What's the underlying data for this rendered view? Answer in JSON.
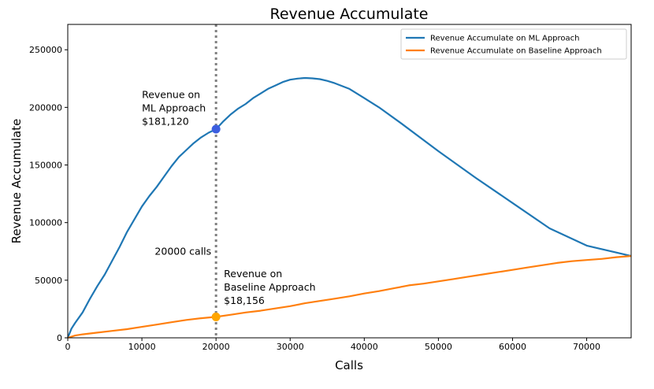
{
  "chart_data": {
    "type": "line",
    "title": "Revenue Accumulate",
    "xlabel": "Calls",
    "ylabel": "Revenue Accumulate",
    "xlim": [
      0,
      76000
    ],
    "ylim": [
      0,
      272000
    ],
    "xticks": [
      0,
      10000,
      20000,
      30000,
      40000,
      50000,
      60000,
      70000
    ],
    "yticks": [
      0,
      50000,
      100000,
      150000,
      200000,
      250000
    ],
    "grid": false,
    "legend_position": "top-right",
    "series": [
      {
        "name": "Revenue Accumulate on ML Approach",
        "color": "#1f77b4",
        "points": [
          [
            0,
            0
          ],
          [
            500,
            8000
          ],
          [
            1000,
            13000
          ],
          [
            2000,
            22000
          ],
          [
            3000,
            34000
          ],
          [
            4000,
            45000
          ],
          [
            5000,
            55000
          ],
          [
            6000,
            67000
          ],
          [
            7000,
            79000
          ],
          [
            8000,
            92000
          ],
          [
            9000,
            103000
          ],
          [
            10000,
            114000
          ],
          [
            11000,
            123000
          ],
          [
            12000,
            131000
          ],
          [
            13000,
            140000
          ],
          [
            14000,
            149000
          ],
          [
            15000,
            157000
          ],
          [
            16000,
            163000
          ],
          [
            17000,
            169000
          ],
          [
            18000,
            174000
          ],
          [
            19000,
            178000
          ],
          [
            20000,
            181120
          ],
          [
            21000,
            188000
          ],
          [
            22000,
            194000
          ],
          [
            23000,
            199000
          ],
          [
            24000,
            203000
          ],
          [
            25000,
            208000
          ],
          [
            26000,
            212000
          ],
          [
            27000,
            216000
          ],
          [
            28000,
            219000
          ],
          [
            29000,
            222000
          ],
          [
            30000,
            224000
          ],
          [
            31000,
            225000
          ],
          [
            32000,
            225500
          ],
          [
            33000,
            225200
          ],
          [
            34000,
            224500
          ],
          [
            35000,
            223000
          ],
          [
            36000,
            221000
          ],
          [
            38000,
            216000
          ],
          [
            40000,
            208000
          ],
          [
            42000,
            200000
          ],
          [
            45000,
            186000
          ],
          [
            50000,
            162000
          ],
          [
            55000,
            139000
          ],
          [
            60000,
            117000
          ],
          [
            65000,
            95000
          ],
          [
            70000,
            80000
          ],
          [
            76000,
            71000
          ]
        ]
      },
      {
        "name": "Revenue Accumulate on Baseline Approach",
        "color": "#ff7f0e",
        "points": [
          [
            0,
            0
          ],
          [
            1000,
            2000
          ],
          [
            2000,
            3000
          ],
          [
            4000,
            4500
          ],
          [
            6000,
            6000
          ],
          [
            8000,
            7500
          ],
          [
            10000,
            9500
          ],
          [
            12000,
            11500
          ],
          [
            14000,
            13500
          ],
          [
            16000,
            15500
          ],
          [
            18000,
            17000
          ],
          [
            20000,
            18156
          ],
          [
            22000,
            20000
          ],
          [
            24000,
            22000
          ],
          [
            26000,
            23500
          ],
          [
            28000,
            25500
          ],
          [
            30000,
            27500
          ],
          [
            32000,
            30000
          ],
          [
            34000,
            32000
          ],
          [
            36000,
            34000
          ],
          [
            38000,
            36000
          ],
          [
            40000,
            38500
          ],
          [
            42000,
            40500
          ],
          [
            44000,
            43000
          ],
          [
            46000,
            45500
          ],
          [
            48000,
            47000
          ],
          [
            50000,
            49000
          ],
          [
            52000,
            51000
          ],
          [
            54000,
            53000
          ],
          [
            56000,
            55000
          ],
          [
            58000,
            57000
          ],
          [
            60000,
            59000
          ],
          [
            62000,
            61000
          ],
          [
            64000,
            63000
          ],
          [
            66000,
            65000
          ],
          [
            68000,
            66500
          ],
          [
            70000,
            67500
          ],
          [
            72000,
            68500
          ],
          [
            74000,
            70000
          ],
          [
            76000,
            71000
          ]
        ]
      }
    ],
    "vline": {
      "x": 20000,
      "label": "20000 calls",
      "color": "#808080"
    },
    "markers": [
      {
        "x": 20000,
        "y": 181120,
        "color": "#3c5ee0",
        "label_lines": [
          "Revenue on",
          "ML Approach",
          "$181,120"
        ]
      },
      {
        "x": 20000,
        "y": 18156,
        "color": "#ffa500",
        "label_lines": [
          "Revenue on",
          "Baseline Approach",
          "$18,156"
        ]
      }
    ]
  }
}
